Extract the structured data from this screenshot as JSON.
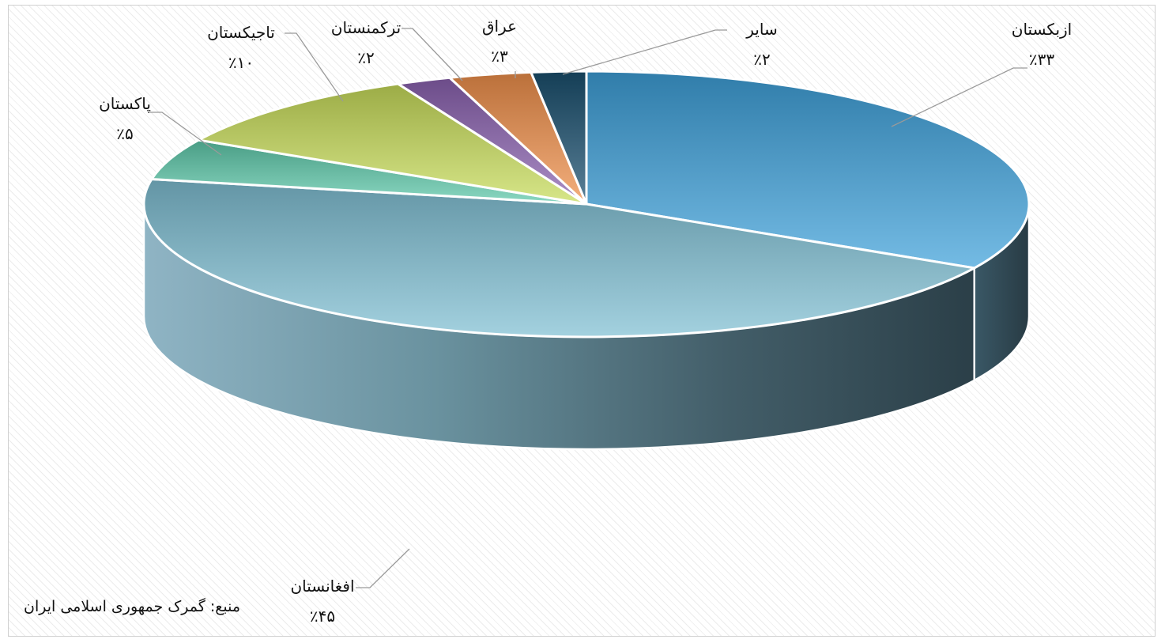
{
  "chart_data": {
    "type": "pie",
    "style": "3d",
    "slices": [
      {
        "label": "ازبکستان",
        "value": 33,
        "value_label": "٪۳۳",
        "color": "#3ea0da"
      },
      {
        "label": "افغانستان",
        "value": 45,
        "value_label": "٪۴۵",
        "color": "#7fbfd3"
      },
      {
        "label": "پاکستان",
        "value": 5,
        "value_label": "٪۵",
        "color": "#5ec9aa"
      },
      {
        "label": "تاجیکستان",
        "value": 10,
        "value_label": "٪۱۰",
        "color": "#c8dc5a"
      },
      {
        "label": "ترکمنستان",
        "value": 2,
        "value_label": "٪۲",
        "color": "#8a62b0"
      },
      {
        "label": "عراق",
        "value": 3,
        "value_label": "٪۳",
        "color": "#f0904a"
      },
      {
        "label": "سایر",
        "value": 2,
        "value_label": "٪۲",
        "color": "#1a4f6e"
      }
    ],
    "legend": "none"
  },
  "source_note": "منبع: گمرک جمهوری اسلامی ایران"
}
